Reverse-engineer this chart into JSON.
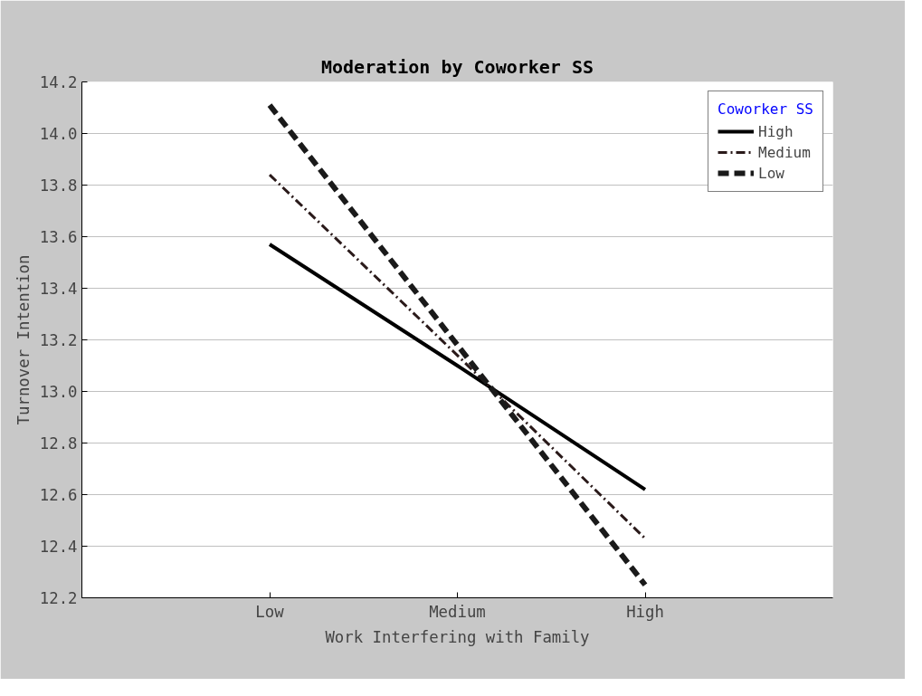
{
  "chart_data": {
    "type": "line",
    "title": "Moderation by Coworker SS",
    "xlabel": "Work Interfering with Family",
    "ylabel": "Turnover Intention",
    "legend_title": "Coworker SS",
    "categories": [
      "Low",
      "Medium",
      "High"
    ],
    "series": [
      {
        "name": "High",
        "color": "#000000",
        "line_style": "solid",
        "values": [
          13.57,
          13.1,
          12.62
        ]
      },
      {
        "name": "Medium",
        "color": "#2a1a1a",
        "line_style": "dashdot",
        "values": [
          13.84,
          13.14,
          12.43
        ]
      },
      {
        "name": "Low",
        "color": "#1a1a1a",
        "line_style": "dashed",
        "values": [
          14.11,
          13.18,
          12.25
        ]
      }
    ],
    "ylim": [
      12.2,
      14.2
    ],
    "yticks": [
      12.2,
      12.4,
      12.6,
      12.8,
      {
        "value": 13,
        "label": "13.0"
      },
      13.2,
      13.4,
      13.6,
      13.8,
      {
        "value": 14,
        "label": "14.0"
      },
      14.2
    ],
    "grid": "y",
    "legend": "top right",
    "marker": "none"
  }
}
